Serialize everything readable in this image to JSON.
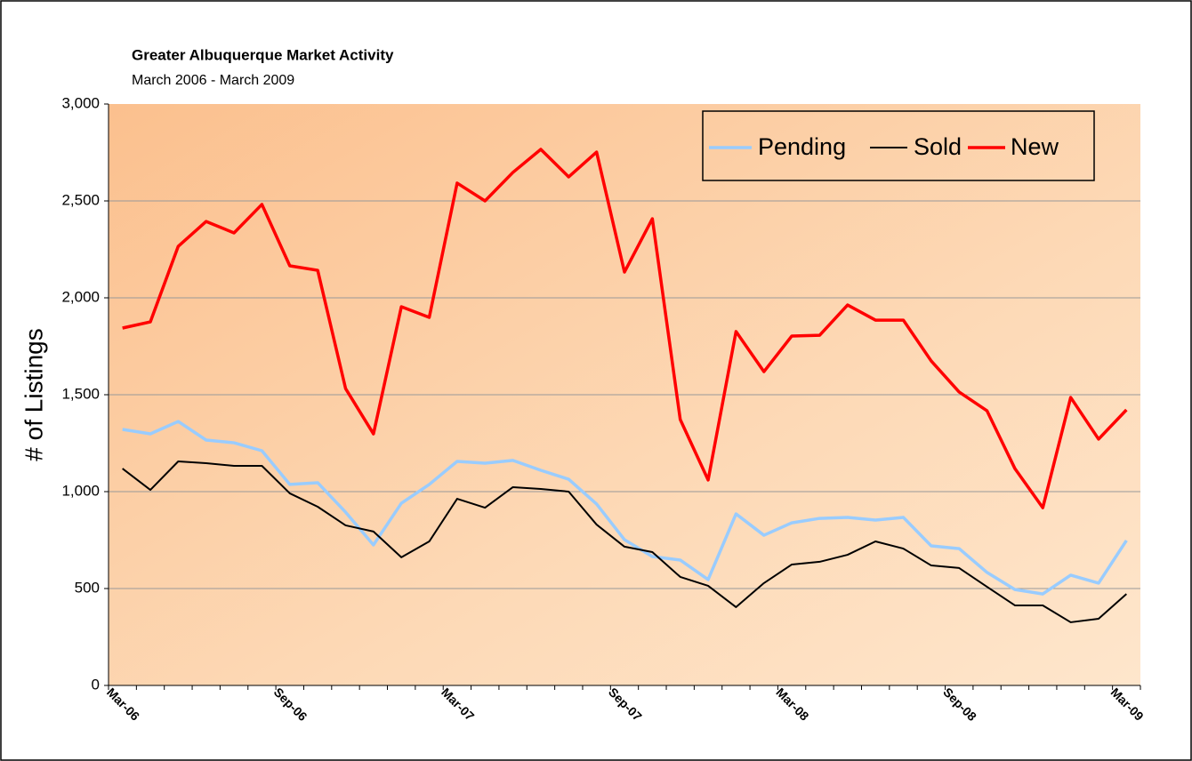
{
  "chart_data": {
    "type": "line",
    "title": "Greater Albuquerque Market Activity",
    "subtitle": "March 2006 - March 2009",
    "y_label": "# of Listings",
    "categories": [
      "Mar-06",
      null,
      null,
      null,
      null,
      null,
      "Sep-06",
      null,
      null,
      null,
      null,
      null,
      "Mar-07",
      null,
      null,
      null,
      null,
      null,
      "Sep-07",
      null,
      null,
      null,
      null,
      null,
      "Mar-08",
      null,
      null,
      null,
      null,
      null,
      "Sep-08",
      null,
      null,
      null,
      null,
      null,
      "Mar-09"
    ],
    "series": [
      {
        "name": "Pending",
        "color": "#99ccff",
        "values": [
          1321,
          1298,
          1362,
          1266,
          1252,
          1211,
          1037,
          1046,
          894,
          725,
          940,
          1037,
          1156,
          1147,
          1161,
          1110,
          1064,
          936,
          752,
          665,
          647,
          546,
          885,
          775,
          839,
          862,
          867,
          853,
          867,
          720,
          706,
          583,
          495,
          472,
          569,
          528,
          748
        ]
      },
      {
        "name": "Sold",
        "color": "#000000",
        "values": [
          1119,
          1009,
          1156,
          1147,
          1133,
          1133,
          991,
          922,
          826,
          794,
          661,
          743,
          963,
          917,
          1023,
          1014,
          1000,
          830,
          716,
          688,
          560,
          514,
          404,
          528,
          624,
          638,
          674,
          743,
          706,
          619,
          606,
          509,
          413,
          413,
          326,
          344,
          472
        ]
      },
      {
        "name": "New",
        "color": "#ff0000",
        "values": [
          1844,
          1876,
          2266,
          2394,
          2335,
          2482,
          2165,
          2142,
          1532,
          1298,
          1954,
          1899,
          2592,
          2500,
          2647,
          2766,
          2624,
          2752,
          2133,
          2408,
          1372,
          1060,
          1826,
          1619,
          1803,
          1807,
          1963,
          1885,
          1885,
          1674,
          1514,
          1417,
          1119,
          917,
          1486,
          1271,
          1422
        ]
      }
    ],
    "ylim": [
      0,
      3000
    ],
    "yticks": [
      0,
      500,
      {
        "value": 1000,
        "label": "1,000"
      },
      {
        "value": 1500,
        "label": "1,500"
      },
      {
        "value": 2000,
        "label": "2,000"
      },
      {
        "value": 2500,
        "label": "2,500"
      },
      {
        "value": 3000,
        "label": "3,000"
      }
    ],
    "grid": true,
    "legend": "top-right"
  }
}
